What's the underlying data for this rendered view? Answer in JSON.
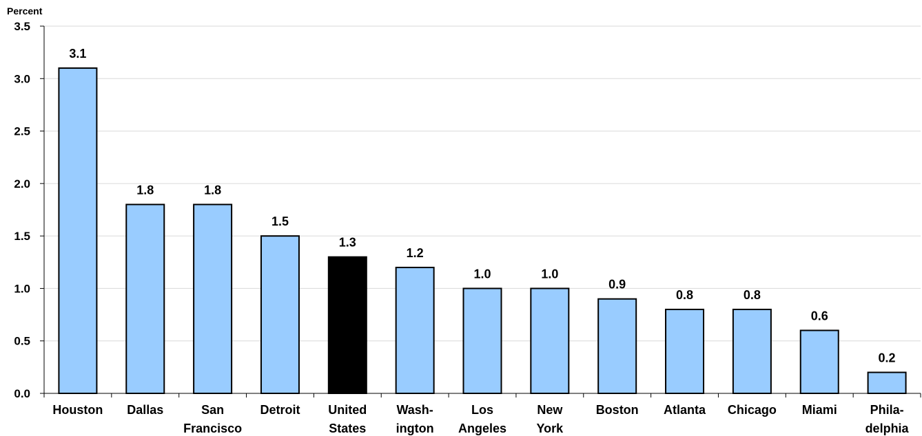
{
  "chart_data": {
    "type": "bar",
    "unit_label": "Percent",
    "categories": [
      [
        "Houston"
      ],
      [
        "Dallas"
      ],
      [
        "San",
        "Francisco"
      ],
      [
        "Detroit"
      ],
      [
        "United",
        "States"
      ],
      [
        "Wash-",
        "ington"
      ],
      [
        "Los",
        "Angeles"
      ],
      [
        "New",
        "York"
      ],
      [
        "Boston"
      ],
      [
        "Atlanta"
      ],
      [
        "Chicago"
      ],
      [
        "Miami"
      ],
      [
        "Phila-",
        "delphia"
      ]
    ],
    "values": [
      3.1,
      1.8,
      1.8,
      1.5,
      1.3,
      1.2,
      1.0,
      1.0,
      0.9,
      0.8,
      0.8,
      0.6,
      0.2
    ],
    "data_labels": [
      "3.1",
      "1.8",
      "1.8",
      "1.5",
      "1.3",
      "1.2",
      "1.0",
      "1.0",
      "0.9",
      "0.8",
      "0.8",
      "0.6",
      "0.2"
    ],
    "yticks": [
      "0.0",
      "0.5",
      "1.0",
      "1.5",
      "2.0",
      "2.5",
      "3.0",
      "3.5"
    ],
    "ylim": [
      0,
      3.5
    ],
    "grid": true,
    "colors": {
      "default_bar": "#99ccff",
      "highlight_bar": "#000000",
      "bar_outline": "#000000",
      "grid": "#d9d9d9"
    },
    "highlight_index": 4
  }
}
